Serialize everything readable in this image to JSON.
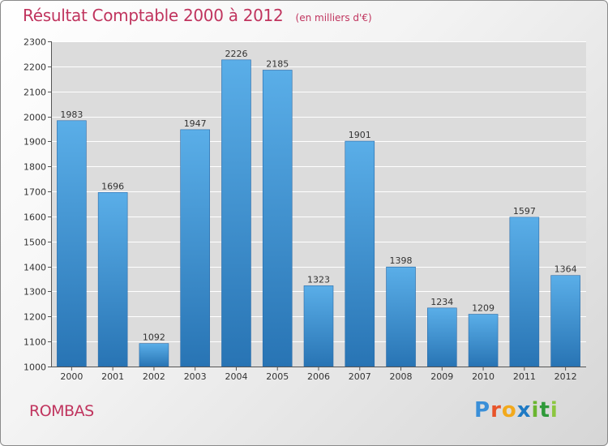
{
  "header": {
    "title": "Résultat Comptable 2000 à 2012",
    "unit": "(en milliers d'€)"
  },
  "footer": {
    "commune": "ROMBAS",
    "logo_text": "Proxiti",
    "logo_letters": [
      "P",
      "r",
      "o",
      "x",
      "i",
      "t",
      "i"
    ],
    "logo_colors": [
      "#3a8fd8",
      "#e8542a",
      "#f2a91c",
      "#1f7ac4",
      "#6ab52f",
      "#2f9a3a",
      "#8cc63f"
    ]
  },
  "colors": {
    "bar_top": "#5aaee8",
    "bar_bottom": "#2874b4",
    "accent": "#c0345e",
    "grid": "#ffffff"
  },
  "chart_data": {
    "type": "bar",
    "title": "Résultat Comptable 2000 à 2012",
    "subtitle": "(en milliers d'€)",
    "xlabel": "",
    "ylabel": "",
    "categories": [
      "2000",
      "2001",
      "2002",
      "2003",
      "2004",
      "2005",
      "2006",
      "2007",
      "2008",
      "2009",
      "2010",
      "2011",
      "2012"
    ],
    "values": [
      1983,
      1696,
      1092,
      1947,
      2226,
      2185,
      1323,
      1901,
      1398,
      1234,
      1209,
      1597,
      1364
    ],
    "ylim": [
      1000,
      2300
    ],
    "yticks": [
      1000,
      1100,
      1200,
      1300,
      1400,
      1500,
      1600,
      1700,
      1800,
      1900,
      2000,
      2100,
      2200,
      2300
    ],
    "grid": true,
    "data_labels": true
  }
}
